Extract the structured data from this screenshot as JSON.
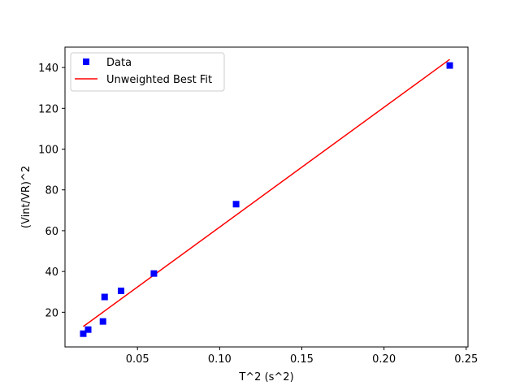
{
  "chart_data": {
    "type": "scatter",
    "title": "",
    "xlabel": "T^2 (s^2)",
    "ylabel": "(Vint/VR)^2",
    "xlim": [
      0.0059,
      0.2511
    ],
    "ylim": [
      3.0,
      150.0
    ],
    "xticks": [
      0.05,
      0.1,
      0.15,
      0.2,
      0.25
    ],
    "xtick_labels": [
      "0.05",
      "0.10",
      "0.15",
      "0.20",
      "0.25"
    ],
    "yticks": [
      20,
      40,
      60,
      80,
      100,
      120,
      140
    ],
    "ytick_labels": [
      "20",
      "40",
      "60",
      "80",
      "100",
      "120",
      "140"
    ],
    "grid": false,
    "legend_position": "top-left",
    "series": [
      {
        "name": "Data",
        "kind": "scatter",
        "marker": "square",
        "color": "#0000ff",
        "x": [
          0.017,
          0.02,
          0.029,
          0.03,
          0.04,
          0.06,
          0.11,
          0.24
        ],
        "y": [
          9.5,
          11.5,
          15.5,
          27.5,
          30.5,
          39.0,
          73.0,
          141.0
        ]
      },
      {
        "name": "Unweighted Best Fit",
        "kind": "line",
        "color": "#ff0000",
        "x": [
          0.017,
          0.24
        ],
        "y": [
          13.0,
          144.0
        ]
      }
    ]
  }
}
